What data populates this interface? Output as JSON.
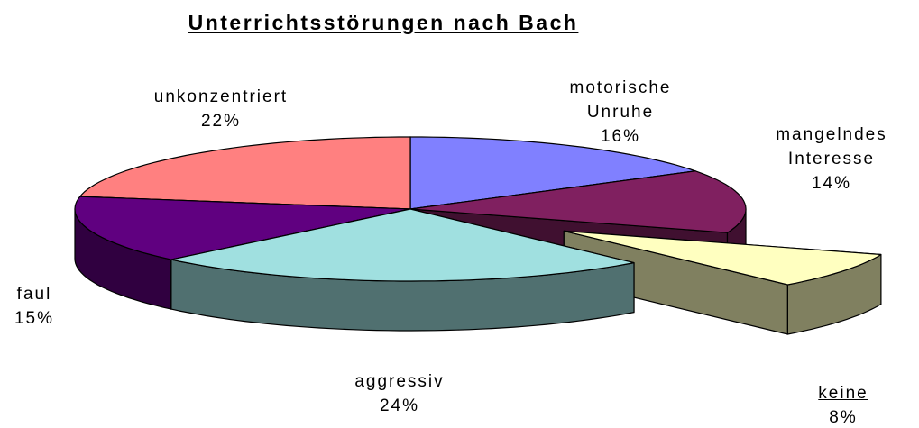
{
  "chart_data": {
    "type": "pie",
    "title": "Unterrichtsstörungen nach Bach",
    "categories": [
      "motorische Unruhe",
      "mangelndes Interesse",
      "keine",
      "aggressiv",
      "faul",
      "unkonzentriert"
    ],
    "values": [
      16,
      14,
      8,
      24,
      15,
      22
    ],
    "value_labels": [
      "16%",
      "14%",
      "8%",
      "24%",
      "15%",
      "22%"
    ],
    "colors": [
      "#8080ff",
      "#802060",
      "#ffffc0",
      "#a0e0e0",
      "#600080",
      "#ff8080"
    ],
    "exploded": [
      "keine"
    ]
  }
}
